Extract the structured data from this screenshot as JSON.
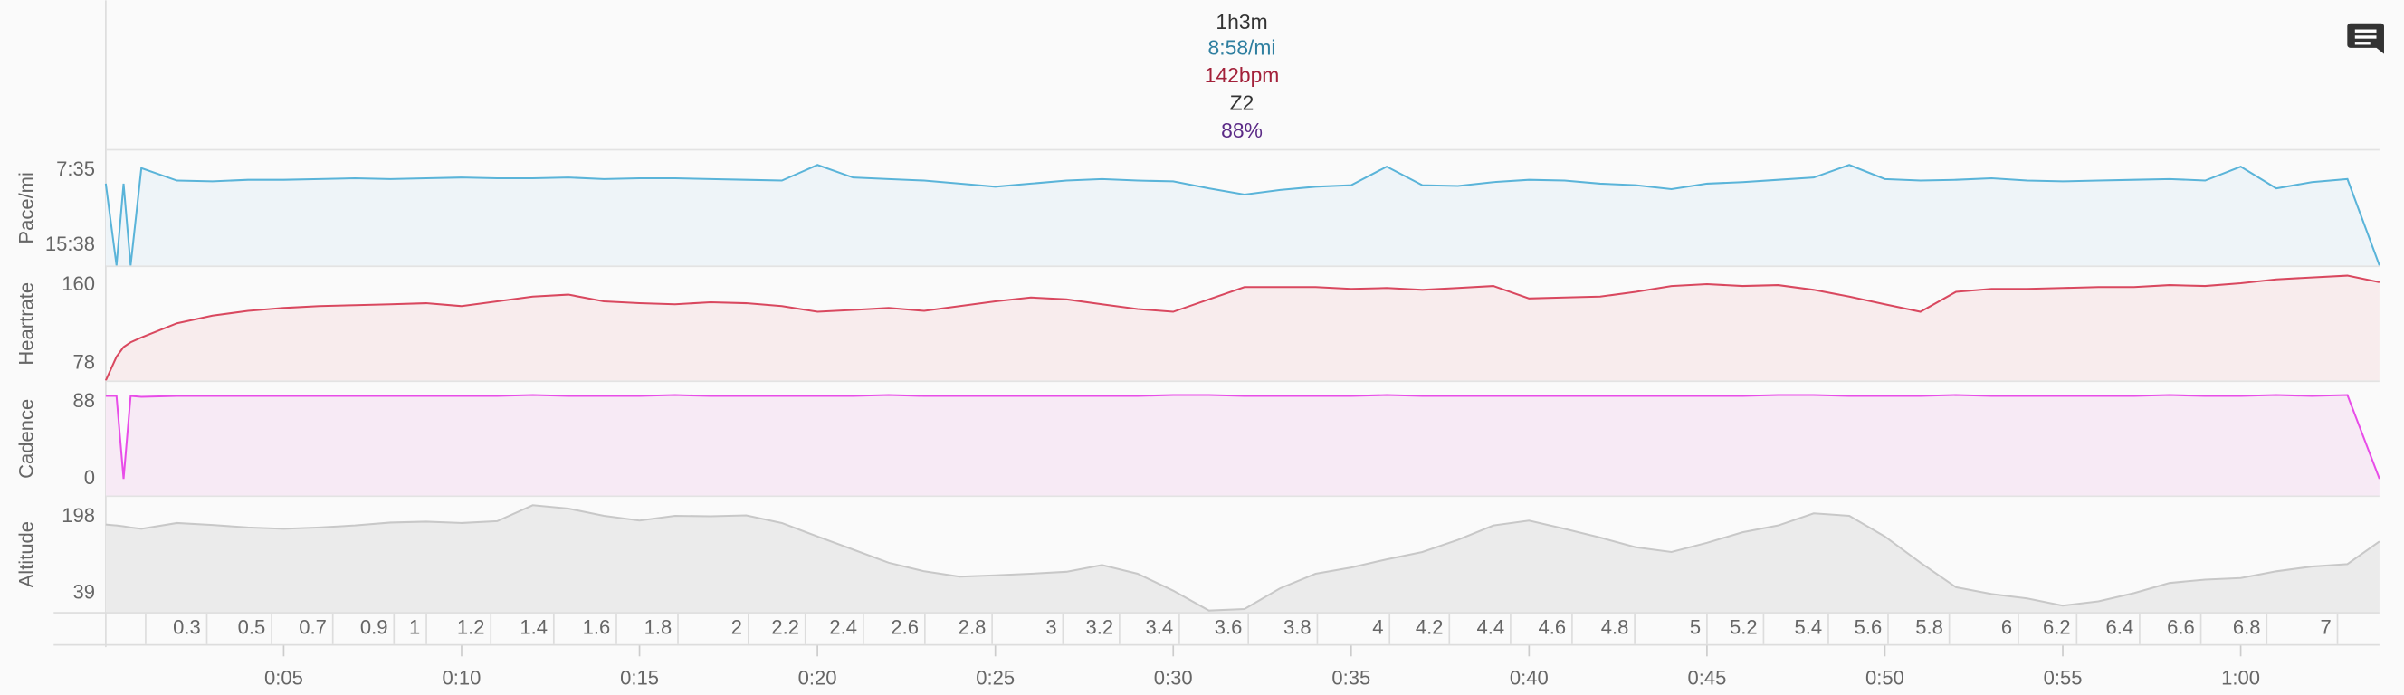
{
  "summary": {
    "duration": "1h3m",
    "pace": "8:58/mi",
    "heartrate": "142bpm",
    "zone": "Z2",
    "cadence": "88%"
  },
  "chart_data": [
    {
      "type": "area",
      "ylabel": "Pace/mi",
      "color": "#5ab4d9",
      "fill": "#eef4f8",
      "xlim": [
        0,
        63.9
      ],
      "ylim": [
        1066,
        327
      ],
      "yticks": [
        {
          "value": 455,
          "label": "7:35"
        },
        {
          "value": 938,
          "label": "15:38"
        }
      ],
      "x": [
        0,
        0.3,
        0.5,
        0.7,
        1,
        2,
        3,
        4,
        5,
        6,
        7,
        8,
        9,
        10,
        11,
        12,
        13,
        14,
        15,
        16,
        17,
        18,
        19,
        20,
        21,
        22,
        23,
        24,
        25,
        26,
        27,
        28,
        29,
        30,
        31,
        32,
        33,
        34,
        35,
        36,
        37,
        38,
        39,
        40,
        41,
        42,
        43,
        44,
        45,
        46,
        47,
        48,
        49,
        50,
        51,
        52,
        53,
        54,
        55,
        56,
        57,
        58,
        59,
        60,
        61,
        62,
        63,
        63.9
      ],
      "values": [
        540,
        1066,
        540,
        1066,
        440,
        520,
        525,
        515,
        515,
        510,
        505,
        510,
        505,
        500,
        505,
        505,
        500,
        510,
        505,
        505,
        510,
        515,
        520,
        420,
        500,
        510,
        520,
        540,
        560,
        540,
        520,
        510,
        520,
        525,
        570,
        610,
        580,
        560,
        550,
        430,
        550,
        555,
        530,
        515,
        520,
        540,
        550,
        575,
        540,
        530,
        515,
        500,
        420,
        510,
        520,
        515,
        505,
        520,
        525,
        520,
        515,
        510,
        520,
        430,
        570,
        530,
        510,
        1066
      ]
    },
    {
      "type": "area",
      "ylabel": "Heartrate",
      "color": "#d9485f",
      "fill": "#f8eced",
      "xlim": [
        0,
        63.9
      ],
      "ylim": [
        60,
        179
      ],
      "yticks": [
        78,
        160
      ],
      "x": [
        0,
        0.3,
        0.5,
        0.7,
        1,
        2,
        3,
        4,
        5,
        6,
        7,
        8,
        9,
        10,
        11,
        12,
        13,
        14,
        15,
        16,
        17,
        18,
        19,
        20,
        21,
        22,
        23,
        24,
        25,
        26,
        27,
        28,
        29,
        30,
        31,
        32,
        33,
        34,
        35,
        36,
        37,
        38,
        39,
        40,
        41,
        42,
        43,
        44,
        45,
        46,
        47,
        48,
        49,
        50,
        51,
        52,
        53,
        54,
        55,
        56,
        57,
        58,
        59,
        60,
        61,
        62,
        63,
        63.9
      ],
      "values": [
        60,
        85,
        95,
        100,
        105,
        120,
        128,
        133,
        136,
        138,
        139,
        140,
        141,
        138,
        143,
        148,
        150,
        143,
        141,
        140,
        142,
        141,
        138,
        132,
        134,
        136,
        133,
        138,
        143,
        147,
        145,
        140,
        135,
        132,
        145,
        158,
        158,
        158,
        156,
        157,
        155,
        157,
        159,
        146,
        147,
        148,
        153,
        159,
        161,
        159,
        160,
        155,
        148,
        140,
        132,
        153,
        156,
        156,
        157,
        158,
        158,
        160,
        159,
        162,
        166,
        168,
        170,
        163
      ]
    },
    {
      "type": "area",
      "ylabel": "Cadence",
      "color": "#e84de8",
      "fill": "#f7eaf5",
      "xlim": [
        0,
        63.9
      ],
      "ylim": [
        -19,
        111
      ],
      "yticks": [
        0,
        88
      ],
      "x": [
        0,
        0.3,
        0.5,
        0.7,
        1,
        2,
        3,
        4,
        5,
        6,
        7,
        8,
        9,
        10,
        11,
        12,
        13,
        14,
        15,
        16,
        17,
        18,
        19,
        20,
        21,
        22,
        23,
        24,
        25,
        26,
        27,
        28,
        29,
        30,
        31,
        32,
        33,
        34,
        35,
        36,
        37,
        38,
        39,
        40,
        41,
        42,
        43,
        44,
        45,
        46,
        47,
        48,
        49,
        50,
        51,
        52,
        53,
        54,
        55,
        56,
        57,
        58,
        59,
        60,
        61,
        62,
        63,
        63.9
      ],
      "values": [
        95,
        95,
        0,
        95,
        94,
        95,
        95,
        95,
        95,
        95,
        95,
        95,
        95,
        95,
        95,
        96,
        95,
        95,
        95,
        96,
        95,
        95,
        95,
        95,
        95,
        96,
        95,
        95,
        95,
        95,
        95,
        95,
        95,
        96,
        96,
        95,
        95,
        95,
        95,
        96,
        95,
        95,
        95,
        95,
        95,
        95,
        95,
        95,
        95,
        95,
        96,
        96,
        95,
        95,
        95,
        96,
        95,
        95,
        95,
        95,
        95,
        96,
        95,
        95,
        96,
        95,
        96,
        0
      ]
    },
    {
      "type": "area",
      "ylabel": "Altitude",
      "color": "#c8c8c8",
      "fill": "#ebebeb",
      "xlim": [
        0,
        63.9
      ],
      "ylim": [
        1,
        239
      ],
      "yticks": [
        39,
        198
      ],
      "x": [
        0,
        0.3,
        0.5,
        0.7,
        1,
        2,
        3,
        4,
        5,
        6,
        7,
        8,
        9,
        10,
        11,
        12,
        13,
        14,
        15,
        16,
        17,
        18,
        19,
        20,
        21,
        22,
        23,
        24,
        25,
        26,
        27,
        28,
        29,
        30,
        31,
        32,
        33,
        34,
        35,
        36,
        37,
        38,
        39,
        40,
        41,
        42,
        43,
        44,
        45,
        46,
        47,
        48,
        49,
        50,
        51,
        52,
        53,
        54,
        55,
        56,
        57,
        58,
        59,
        60,
        61,
        62,
        63,
        63.9
      ],
      "values": [
        182,
        180,
        178,
        176,
        173,
        185,
        181,
        176,
        173,
        176,
        180,
        186,
        188,
        185,
        189,
        222,
        215,
        200,
        190,
        200,
        199,
        201,
        185,
        157,
        130,
        103,
        85,
        74,
        77,
        80,
        84,
        98,
        80,
        45,
        4,
        7,
        50,
        80,
        93,
        110,
        125,
        150,
        180,
        190,
        173,
        155,
        135,
        125,
        144,
        166,
        180,
        205,
        200,
        157,
        103,
        52,
        38,
        29,
        14,
        23,
        40,
        61,
        68,
        71,
        85,
        95,
        100,
        147
      ],
      "distance_ticks": [
        {
          "value": 2.84,
          "label": "0.3"
        },
        {
          "value": 4.66,
          "label": "0.5"
        },
        {
          "value": 6.38,
          "label": "0.7"
        },
        {
          "value": 8.1,
          "label": "0.9"
        },
        {
          "value": 9.01,
          "label": "1"
        },
        {
          "value": 10.82,
          "label": "1.2"
        },
        {
          "value": 12.59,
          "label": "1.4"
        },
        {
          "value": 14.35,
          "label": "1.6"
        },
        {
          "value": 16.08,
          "label": "1.8"
        },
        {
          "value": 18.06,
          "label": "2"
        },
        {
          "value": 19.66,
          "label": "2.2"
        },
        {
          "value": 21.29,
          "label": "2.4"
        },
        {
          "value": 23.02,
          "label": "2.6"
        },
        {
          "value": 24.91,
          "label": "2.8"
        },
        {
          "value": 26.9,
          "label": "3"
        },
        {
          "value": 28.49,
          "label": "3.2"
        },
        {
          "value": 30.17,
          "label": "3.4"
        },
        {
          "value": 32.11,
          "label": "3.6"
        },
        {
          "value": 34.05,
          "label": "3.8"
        },
        {
          "value": 36.08,
          "label": "4"
        },
        {
          "value": 37.76,
          "label": "4.2"
        },
        {
          "value": 39.48,
          "label": "4.4"
        },
        {
          "value": 41.21,
          "label": "4.6"
        },
        {
          "value": 42.97,
          "label": "4.8"
        },
        {
          "value": 45,
          "label": "5"
        },
        {
          "value": 46.59,
          "label": "5.2"
        },
        {
          "value": 48.41,
          "label": "5.4"
        },
        {
          "value": 50.09,
          "label": "5.6"
        },
        {
          "value": 51.81,
          "label": "5.8"
        },
        {
          "value": 53.75,
          "label": "6"
        },
        {
          "value": 55.39,
          "label": "6.2"
        },
        {
          "value": 57.16,
          "label": "6.4"
        },
        {
          "value": 58.88,
          "label": "6.6"
        },
        {
          "value": 60.73,
          "label": "6.8"
        },
        {
          "value": 62.72,
          "label": "7"
        }
      ],
      "xticks": [
        {
          "value": 5,
          "label": "0:05"
        },
        {
          "value": 10,
          "label": "0:10"
        },
        {
          "value": 15,
          "label": "0:15"
        },
        {
          "value": 20,
          "label": "0:20"
        },
        {
          "value": 25,
          "label": "0:25"
        },
        {
          "value": 30,
          "label": "0:30"
        },
        {
          "value": 35,
          "label": "0:35"
        },
        {
          "value": 40,
          "label": "0:40"
        },
        {
          "value": 45,
          "label": "0:45"
        },
        {
          "value": 50,
          "label": "0:50"
        },
        {
          "value": 55,
          "label": "0:55"
        },
        {
          "value": 60,
          "label": "1:00"
        }
      ]
    }
  ]
}
